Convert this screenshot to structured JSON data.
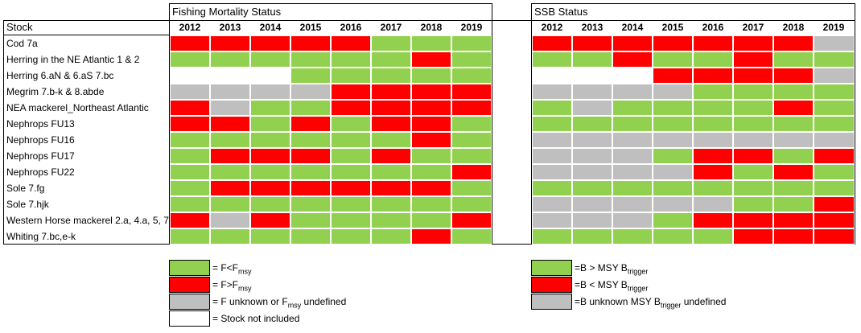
{
  "fishing_header": "Fishing Mortality Status",
  "ssb_header": "SSB Status",
  "stock_header": "Stock",
  "years": [
    "2012",
    "2013",
    "2014",
    "2015",
    "2016",
    "2017",
    "2018",
    "2019"
  ],
  "stocks": [
    "Cod 7a",
    "Herring in the NE Atlantic  1 & 2",
    "Herring 6.aN & 6.aS 7.bc",
    "Megrim 7.b-k & 8.abde",
    "NEA mackerel_Northeast Atlantic",
    "Nephrops FU13",
    "Nephrops FU16",
    "Nephrops FU17",
    "Nephrops FU22",
    "Sole 7.fg",
    "Sole 7.hjk",
    "Western Horse mackerel 2.a, 4.a, 5, 7",
    "Whiting 7.bc,e-k"
  ],
  "fishing_status": [
    [
      "red",
      "red",
      "red",
      "red",
      "red",
      "green",
      "green",
      "green"
    ],
    [
      "green",
      "green",
      "green",
      "green",
      "green",
      "green",
      "red",
      "green"
    ],
    [
      "white",
      "white",
      "white",
      "green",
      "green",
      "green",
      "green",
      "green"
    ],
    [
      "grey",
      "grey",
      "grey",
      "grey",
      "red",
      "red",
      "red",
      "red"
    ],
    [
      "red",
      "grey",
      "green",
      "green",
      "red",
      "red",
      "red",
      "red"
    ],
    [
      "red",
      "red",
      "green",
      "red",
      "green",
      "red",
      "red",
      "green"
    ],
    [
      "green",
      "green",
      "green",
      "green",
      "green",
      "green",
      "red",
      "green"
    ],
    [
      "green",
      "red",
      "red",
      "red",
      "green",
      "red",
      "green",
      "green"
    ],
    [
      "green",
      "green",
      "green",
      "green",
      "green",
      "green",
      "green",
      "red"
    ],
    [
      "green",
      "red",
      "red",
      "red",
      "red",
      "red",
      "red",
      "green"
    ],
    [
      "green",
      "green",
      "green",
      "green",
      "green",
      "green",
      "green",
      "green"
    ],
    [
      "red",
      "grey",
      "red",
      "green",
      "green",
      "green",
      "green",
      "red"
    ],
    [
      "green",
      "green",
      "green",
      "green",
      "green",
      "green",
      "red",
      "green"
    ]
  ],
  "ssb_status": [
    [
      "red",
      "red",
      "red",
      "red",
      "red",
      "red",
      "red",
      "grey"
    ],
    [
      "green",
      "green",
      "red",
      "green",
      "green",
      "red",
      "green",
      "green"
    ],
    [
      "white",
      "white",
      "white",
      "red",
      "red",
      "red",
      "red",
      "grey"
    ],
    [
      "grey",
      "grey",
      "grey",
      "grey",
      "green",
      "green",
      "green",
      "green"
    ],
    [
      "green",
      "grey",
      "green",
      "green",
      "green",
      "green",
      "red",
      "green"
    ],
    [
      "green",
      "green",
      "green",
      "green",
      "green",
      "green",
      "green",
      "green"
    ],
    [
      "grey",
      "grey",
      "grey",
      "grey",
      "grey",
      "grey",
      "grey",
      "grey"
    ],
    [
      "grey",
      "grey",
      "grey",
      "green",
      "red",
      "red",
      "green",
      "red"
    ],
    [
      "grey",
      "grey",
      "grey",
      "grey",
      "red",
      "green",
      "red",
      "green"
    ],
    [
      "green",
      "green",
      "green",
      "green",
      "green",
      "green",
      "green",
      "green"
    ],
    [
      "grey",
      "grey",
      "grey",
      "grey",
      "grey",
      "green",
      "green",
      "red"
    ],
    [
      "grey",
      "grey",
      "grey",
      "green",
      "red",
      "red",
      "red",
      "red"
    ],
    [
      "green",
      "green",
      "green",
      "green",
      "green",
      "red",
      "red",
      "red"
    ]
  ],
  "legend_fishing": [
    {
      "color": "green",
      "text": "= F<F",
      "sub": "msy",
      "after": ""
    },
    {
      "color": "red",
      "text": "= F>F",
      "sub": "msy",
      "after": ""
    },
    {
      "color": "grey",
      "text": "= F unknown or F",
      "sub": "msy",
      "after": " undefined"
    },
    {
      "color": "white",
      "text": "= Stock not included",
      "sub": "",
      "after": ""
    }
  ],
  "legend_ssb": [
    {
      "color": "green",
      "text": "=B > MSY B",
      "sub": "trigger",
      "after": ""
    },
    {
      "color": "red",
      "text": "=B < MSY B",
      "sub": "trigger",
      "after": ""
    },
    {
      "color": "grey",
      "text": "=B unknown MSY B",
      "sub": "trigger",
      "after": " undefined"
    }
  ]
}
